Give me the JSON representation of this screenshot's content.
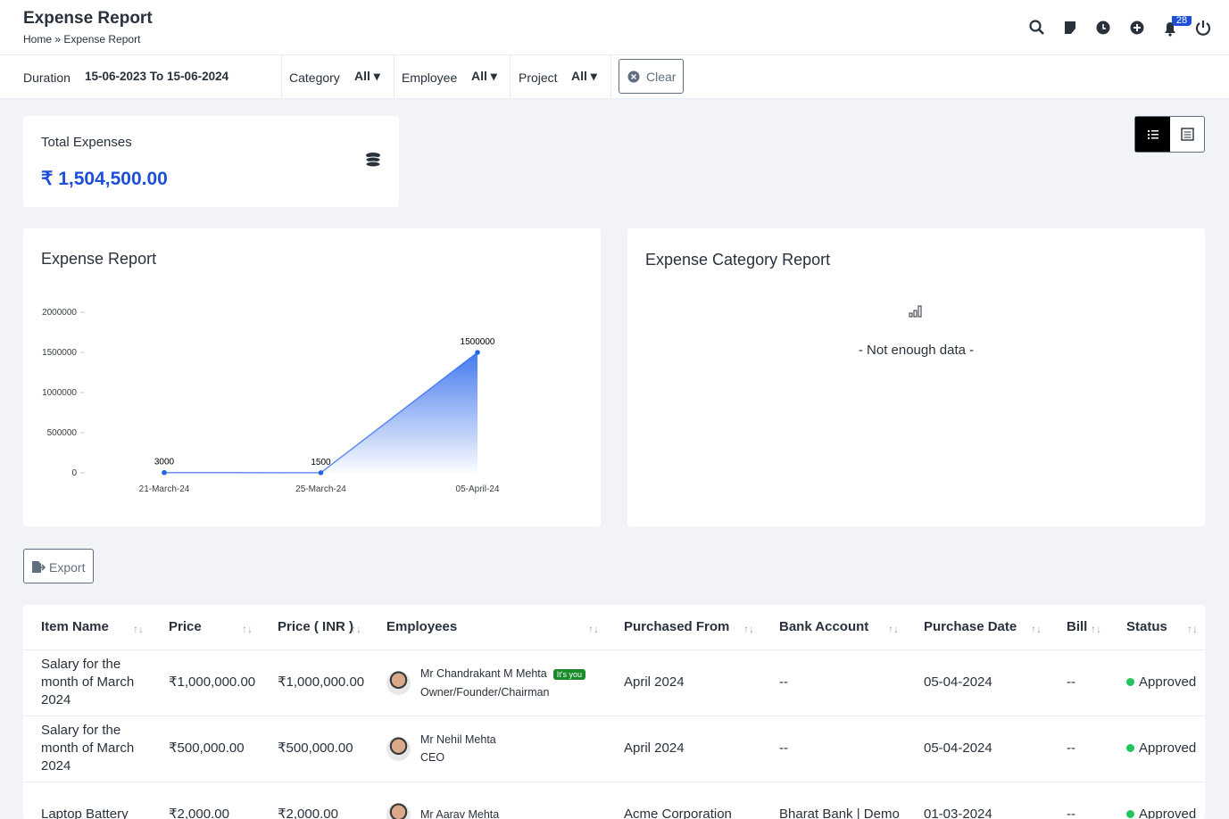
{
  "header": {
    "title": "Expense Report",
    "breadcrumb": [
      "Home",
      "Expense Report"
    ],
    "notification_count": 28
  },
  "filters": {
    "duration_label": "Duration",
    "duration": "15-06-2023 To 15-06-2024",
    "category_label": "Category",
    "category": "All",
    "employee_label": "Employee",
    "employee": "All",
    "project_label": "Project",
    "project": "All",
    "clear": "Clear"
  },
  "summary": {
    "label": "Total Expenses",
    "value": "₹ 1,504,500.00"
  },
  "chart_data": {
    "type": "area",
    "title": "Expense Report",
    "categories": [
      "21-March-24",
      "25-March-24",
      "05-April-24"
    ],
    "values": [
      3000,
      1500,
      1500000
    ],
    "color": "#2563eb",
    "ylim": [
      0,
      2000000
    ],
    "yticks": [
      0,
      500000,
      1000000,
      1500000,
      2000000
    ]
  },
  "category_report": {
    "title": "Expense Category Report",
    "empty": "- Not enough data -"
  },
  "export": "Export",
  "table": {
    "columns": [
      "Item Name",
      "Price",
      "Price ( INR )",
      "Employees",
      "Purchased From",
      "Bank Account",
      "Purchase Date",
      "Bill",
      "Status"
    ],
    "rows": [
      {
        "item": "Salary for the month of March 2024",
        "price": "₹1,000,000.00",
        "price_inr": "₹1,000,000.00",
        "employee": {
          "name": "Mr Chandrakant M Mehta",
          "badge": "It's you",
          "role": "Owner/Founder/Chairman"
        },
        "purchased_from": "April 2024",
        "bank_account": "--",
        "purchase_date": "05-04-2024",
        "bill": "--",
        "status": "Approved"
      },
      {
        "item": "Salary for the month of March 2024",
        "price": "₹500,000.00",
        "price_inr": "₹500,000.00",
        "employee": {
          "name": "Mr Nehil Mehta",
          "role": "CEO"
        },
        "purchased_from": "April 2024",
        "bank_account": "--",
        "purchase_date": "05-04-2024",
        "bill": "--",
        "status": "Approved"
      },
      {
        "item": "Laptop Battery",
        "price": "₹2,000.00",
        "price_inr": "₹2,000.00",
        "employee": {
          "name": "Mr Aarav Mehta"
        },
        "purchased_from": "Acme Corporation",
        "bank_account": "Bharat Bank | Demo",
        "purchase_date": "01-03-2024",
        "bill": "--",
        "status": "Approved"
      }
    ]
  }
}
